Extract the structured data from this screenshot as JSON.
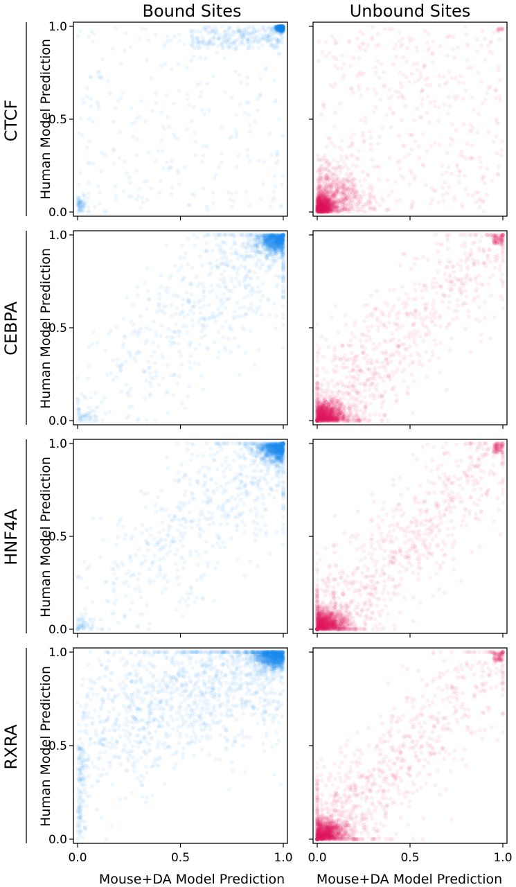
{
  "chart_data": {
    "type": "scatter",
    "columns": [
      "Bound Sites",
      "Unbound Sites"
    ],
    "rows": [
      "CTCF",
      "CEBPA",
      "HNF4A",
      "RXRA"
    ],
    "ylabel": "Human Model Prediction",
    "xlabel": "Mouse+DA Model Prediction",
    "xlim": [
      0,
      1
    ],
    "ylim": [
      0,
      1
    ],
    "xticks": [
      "0.0",
      "0.5",
      "1.0"
    ],
    "yticks": [
      "0.0",
      "0.5",
      "1.0"
    ],
    "grid": false,
    "colors": {
      "bound": "#1f88ee",
      "unbound": "#e8175d"
    },
    "panels": [
      {
        "row": "CTCF",
        "column": "Bound Sites",
        "pattern": "high-cluster-top-right",
        "corr": 0.35
      },
      {
        "row": "CTCF",
        "column": "Unbound Sites",
        "pattern": "low-cluster-bottom-left",
        "corr": 0.25
      },
      {
        "row": "CEBPA",
        "column": "Bound Sites",
        "pattern": "diagonal-top-right",
        "corr": 0.8
      },
      {
        "row": "CEBPA",
        "column": "Unbound Sites",
        "pattern": "diagonal-bottom-left",
        "corr": 0.75
      },
      {
        "row": "HNF4A",
        "column": "Bound Sites",
        "pattern": "diagonal-top-right",
        "corr": 0.6
      },
      {
        "row": "HNF4A",
        "column": "Unbound Sites",
        "pattern": "diagonal-bottom-left",
        "corr": 0.7
      },
      {
        "row": "RXRA",
        "column": "Bound Sites",
        "pattern": "upper-band-top-right",
        "corr": 0.5
      },
      {
        "row": "RXRA",
        "column": "Unbound Sites",
        "pattern": "diagonal-bottom-left",
        "corr": 0.65
      }
    ]
  }
}
